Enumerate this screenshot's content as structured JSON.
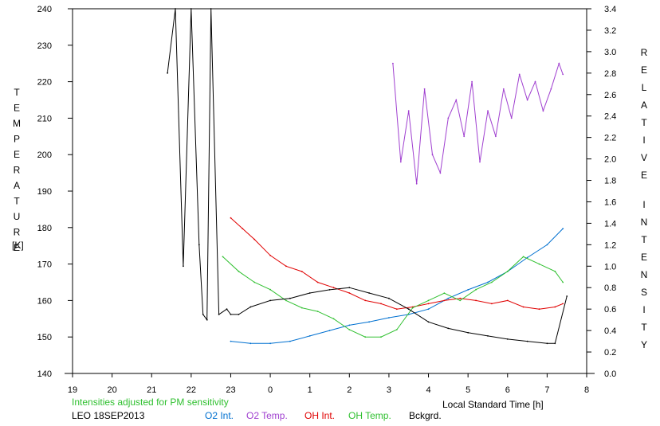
{
  "chart_data": {
    "type": "line",
    "xlabel": "Local Standard Time [h]",
    "ylabel_left": "TEMPERATURE",
    "ylabel_left_unit": "[K]",
    "ylabel_right": "RELATIVE INTENSITY",
    "x_ticks": [
      "19",
      "20",
      "21",
      "22",
      "23",
      "0",
      "1",
      "2",
      "3",
      "4",
      "5",
      "6",
      "7",
      "8"
    ],
    "xlim": [
      19,
      32
    ],
    "ylim_left": [
      140,
      240
    ],
    "yticks_left": [
      "140",
      "150",
      "160",
      "170",
      "180",
      "190",
      "200",
      "210",
      "220",
      "230",
      "240"
    ],
    "ylim_right": [
      0.0,
      3.4
    ],
    "yticks_right": [
      "0.0",
      "0.2",
      "0.4",
      "0.6",
      "0.8",
      "1.0",
      "1.2",
      "1.4",
      "1.6",
      "1.8",
      "2.0",
      "2.2",
      "2.4",
      "2.6",
      "2.8",
      "3.0",
      "3.2",
      "3.4"
    ],
    "note": "Intensities adjusted for PM sensitivity",
    "station": "LEO 18SEP2013",
    "colors": {
      "o2_int": "#0070d0",
      "o2_temp": "#a040d0",
      "oh_int": "#e00000",
      "oh_temp": "#30c030",
      "bckgrd": "#000000",
      "note": "#30c030"
    },
    "series": [
      {
        "name": "O2 Int.",
        "axis": "right",
        "color": "#0070d0",
        "x": [
          23.0,
          23.5,
          24.0,
          24.5,
          25.0,
          25.5,
          26.0,
          26.5,
          27.0,
          27.5,
          28.0,
          28.5,
          29.0,
          29.5,
          30.0,
          30.5,
          31.0,
          31.4
        ],
        "y": [
          0.3,
          0.28,
          0.28,
          0.3,
          0.35,
          0.4,
          0.45,
          0.48,
          0.52,
          0.55,
          0.6,
          0.7,
          0.78,
          0.85,
          0.95,
          1.08,
          1.2,
          1.35
        ]
      },
      {
        "name": "O2 Temp.",
        "axis": "left",
        "color": "#a040d0",
        "x": [
          27.1,
          27.3,
          27.5,
          27.7,
          27.9,
          28.1,
          28.3,
          28.5,
          28.7,
          28.9,
          29.1,
          29.3,
          29.5,
          29.7,
          29.9,
          30.1,
          30.3,
          30.5,
          30.7,
          30.9,
          31.1,
          31.3,
          31.4
        ],
        "y": [
          225,
          198,
          212,
          192,
          218,
          200,
          195,
          210,
          215,
          205,
          220,
          198,
          212,
          205,
          218,
          210,
          222,
          215,
          220,
          212,
          218,
          225,
          222
        ]
      },
      {
        "name": "OH Int.",
        "axis": "right",
        "color": "#e00000",
        "x": [
          23.0,
          23.3,
          23.6,
          24.0,
          24.4,
          24.8,
          25.2,
          25.6,
          26.0,
          26.4,
          26.8,
          27.2,
          27.6,
          28.0,
          28.4,
          28.8,
          29.2,
          29.6,
          30.0,
          30.4,
          30.8,
          31.2,
          31.4
        ],
        "y": [
          1.45,
          1.35,
          1.25,
          1.1,
          1.0,
          0.95,
          0.85,
          0.8,
          0.75,
          0.68,
          0.65,
          0.6,
          0.62,
          0.65,
          0.68,
          0.7,
          0.68,
          0.65,
          0.68,
          0.62,
          0.6,
          0.62,
          0.65
        ]
      },
      {
        "name": "OH Temp.",
        "axis": "left",
        "color": "#30c030",
        "x": [
          22.8,
          23.2,
          23.6,
          24.0,
          24.4,
          24.8,
          25.2,
          25.6,
          26.0,
          26.4,
          26.8,
          27.2,
          27.6,
          28.0,
          28.4,
          28.8,
          29.2,
          29.6,
          30.0,
          30.4,
          30.8,
          31.2,
          31.4
        ],
        "y": [
          172,
          168,
          165,
          163,
          160,
          158,
          157,
          155,
          152,
          150,
          150,
          152,
          158,
          160,
          162,
          160,
          163,
          165,
          168,
          172,
          170,
          168,
          165
        ]
      },
      {
        "name": "Bckgrd.",
        "axis": "right",
        "color": "#000000",
        "x": [
          21.4,
          21.6,
          21.8,
          22.0,
          22.2,
          22.3,
          22.4,
          22.5,
          22.7,
          22.9,
          23.0,
          23.2,
          23.5,
          24.0,
          24.5,
          25.0,
          25.5,
          26.0,
          26.5,
          27.0,
          27.5,
          28.0,
          28.5,
          29.0,
          29.5,
          30.0,
          30.5,
          31.0,
          31.2,
          31.5
        ],
        "y": [
          2.8,
          3.4,
          1.0,
          3.4,
          1.2,
          0.55,
          0.5,
          3.4,
          0.55,
          0.6,
          0.55,
          0.55,
          0.62,
          0.68,
          0.7,
          0.75,
          0.78,
          0.8,
          0.75,
          0.7,
          0.6,
          0.48,
          0.42,
          0.38,
          0.35,
          0.32,
          0.3,
          0.28,
          0.28,
          0.72
        ]
      }
    ]
  }
}
